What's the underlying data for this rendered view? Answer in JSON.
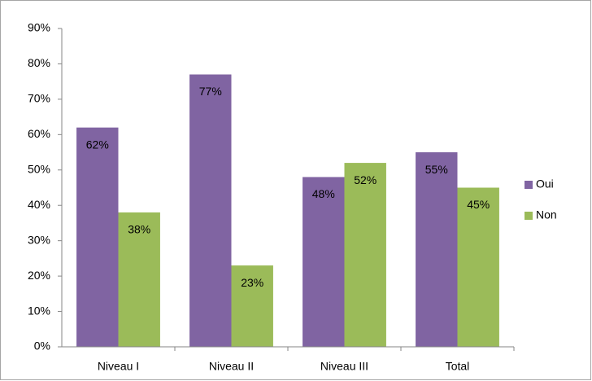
{
  "chart_data": {
    "type": "bar",
    "categories": [
      "Niveau I",
      "Niveau II",
      "Niveau III",
      "Total"
    ],
    "series": [
      {
        "name": "Oui",
        "color": "#8064a2",
        "values": [
          62,
          77,
          48,
          55
        ],
        "value_labels": [
          "62%",
          "77%",
          "48%",
          "55%"
        ]
      },
      {
        "name": "Non",
        "color": "#9bbb59",
        "values": [
          38,
          23,
          52,
          45
        ],
        "value_labels": [
          "38%",
          "23%",
          "52%",
          "45%"
        ]
      }
    ],
    "ylim": [
      0,
      90
    ],
    "yticks": [
      {
        "value": 0,
        "label": "0%"
      },
      {
        "value": 10,
        "label": "10%"
      },
      {
        "value": 20,
        "label": "20%"
      },
      {
        "value": 30,
        "label": "30%"
      },
      {
        "value": 40,
        "label": "40%"
      },
      {
        "value": 50,
        "label": "50%"
      },
      {
        "value": 60,
        "label": "60%"
      },
      {
        "value": 70,
        "label": "70%"
      },
      {
        "value": 80,
        "label": "80%"
      },
      {
        "value": 90,
        "label": "90%"
      }
    ],
    "grid": false,
    "legend": "right"
  }
}
